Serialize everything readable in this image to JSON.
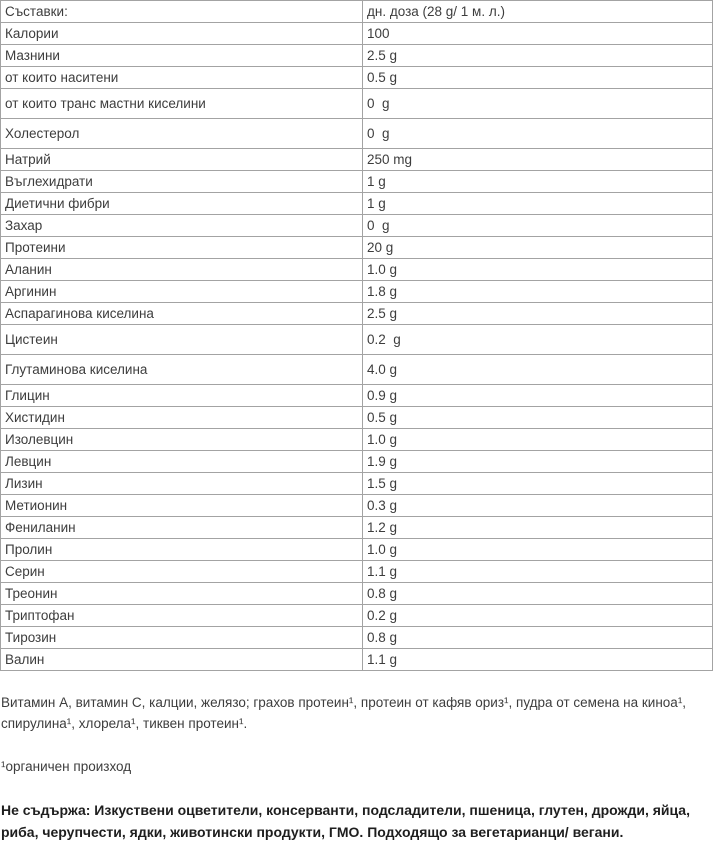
{
  "table": {
    "header": {
      "ingredient": "Съставки:",
      "dose": "дн. доза (28 g/ 1 м. л.)"
    },
    "rows": [
      {
        "label": "Калории",
        "value": "100"
      },
      {
        "label": "Мазнини",
        "value": "2.5 g"
      },
      {
        "label": "от които наситени",
        "value": "0.5 g"
      },
      {
        "label": "от които транс мастни киселини",
        "value": "0  g",
        "tall": true
      },
      {
        "label": "Холестерол",
        "value": "0  g",
        "tall": true
      },
      {
        "label": "Натрий",
        "value": "250 mg"
      },
      {
        "label": "Въглехидрати",
        "value": "1 g"
      },
      {
        "label": "Диетични фибри",
        "value": "1 g"
      },
      {
        "label": "Захар",
        "value": "0  g"
      },
      {
        "label": "Протеини",
        "value": "20 g"
      },
      {
        "label": "Аланин",
        "value": "1.0 g"
      },
      {
        "label": "Аргинин",
        "value": "1.8 g"
      },
      {
        "label": "Аспарагинова киселина",
        "value": "2.5 g"
      },
      {
        "label": "Цистеин",
        "value": "0.2  g",
        "tall": true
      },
      {
        "label": "Глутаминова киселина",
        "value": "4.0 g",
        "tall": true
      },
      {
        "label": "Глицин",
        "value": "0.9 g"
      },
      {
        "label": "Хистидин",
        "value": "0.5 g"
      },
      {
        "label": "Изолевцин",
        "value": "1.0 g"
      },
      {
        "label": "Левцин",
        "value": "1.9 g"
      },
      {
        "label": "Лизин",
        "value": "1.5 g"
      },
      {
        "label": "Метионин",
        "value": "0.3 g"
      },
      {
        "label": "Фениланин",
        "value": "1.2 g"
      },
      {
        "label": "Пролин",
        "value": "1.0 g"
      },
      {
        "label": "Серин",
        "value": "1.1 g"
      },
      {
        "label": "Треонин",
        "value": "0.8 g"
      },
      {
        "label": "Триптофан",
        "value": "0.2 g"
      },
      {
        "label": "Тирозин",
        "value": "0.8 g"
      },
      {
        "label": "Валин",
        "value": "1.1 g"
      }
    ]
  },
  "footer": {
    "additional_ingredients": "Витамин А, витамин С, калции, желязо; грахов протеин¹, протеин от кафяв ориз¹, пудра от семена на киноа¹, спирулина¹, хлорела¹, тиквен протеин¹.",
    "origin_footnote": "¹органичен произход",
    "free_from": "Не съдържа: Изкуствени оцветители, консерванти, подсладители, пшеница, глутен, дрожди, яйца, риба, черупчести, ядки, животински продукти, ГМО. Подходящо за вегетарианци/ вегани."
  },
  "colors": {
    "text": "#3d3d3d",
    "border": "#a3a3a3",
    "bold_text": "#1e1e1e"
  }
}
